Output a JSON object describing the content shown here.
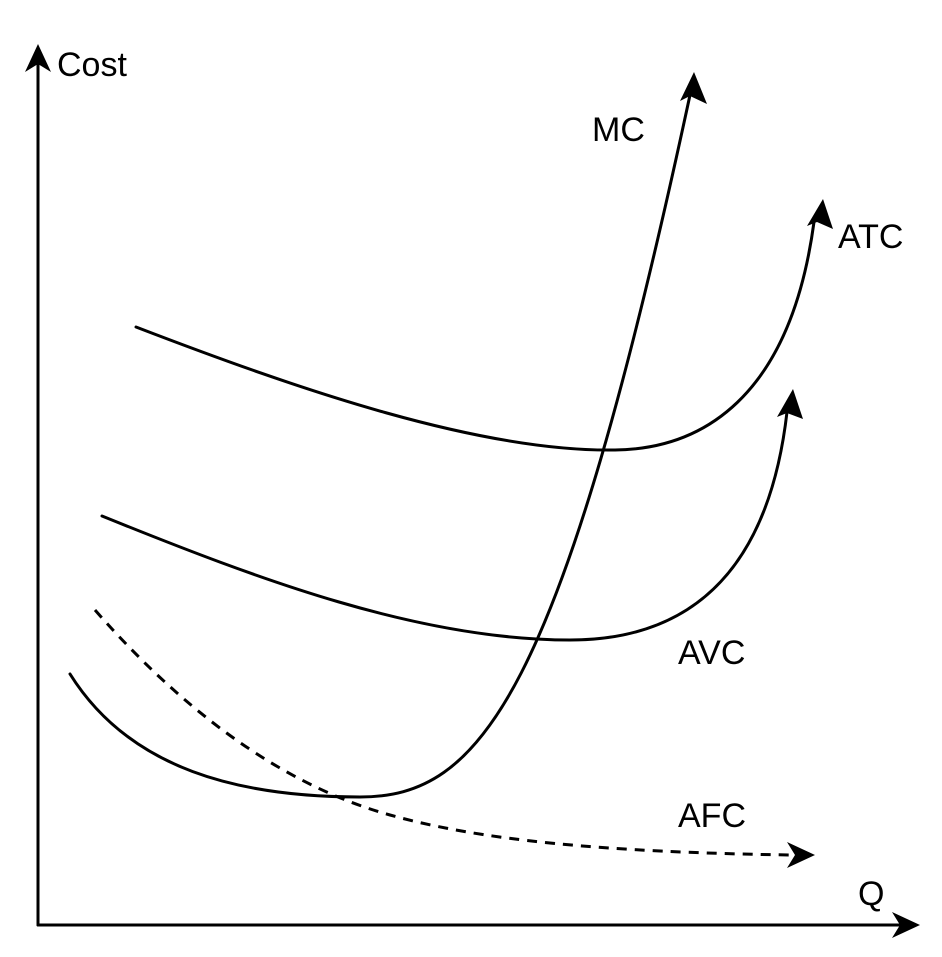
{
  "axes": {
    "y_label": "Cost",
    "x_label": "Q"
  },
  "curves": {
    "mc": "MC",
    "atc": "ATC",
    "avc": "AVC",
    "afc": "AFC"
  },
  "colors": {
    "stroke": "#000000",
    "background": "#ffffff"
  }
}
